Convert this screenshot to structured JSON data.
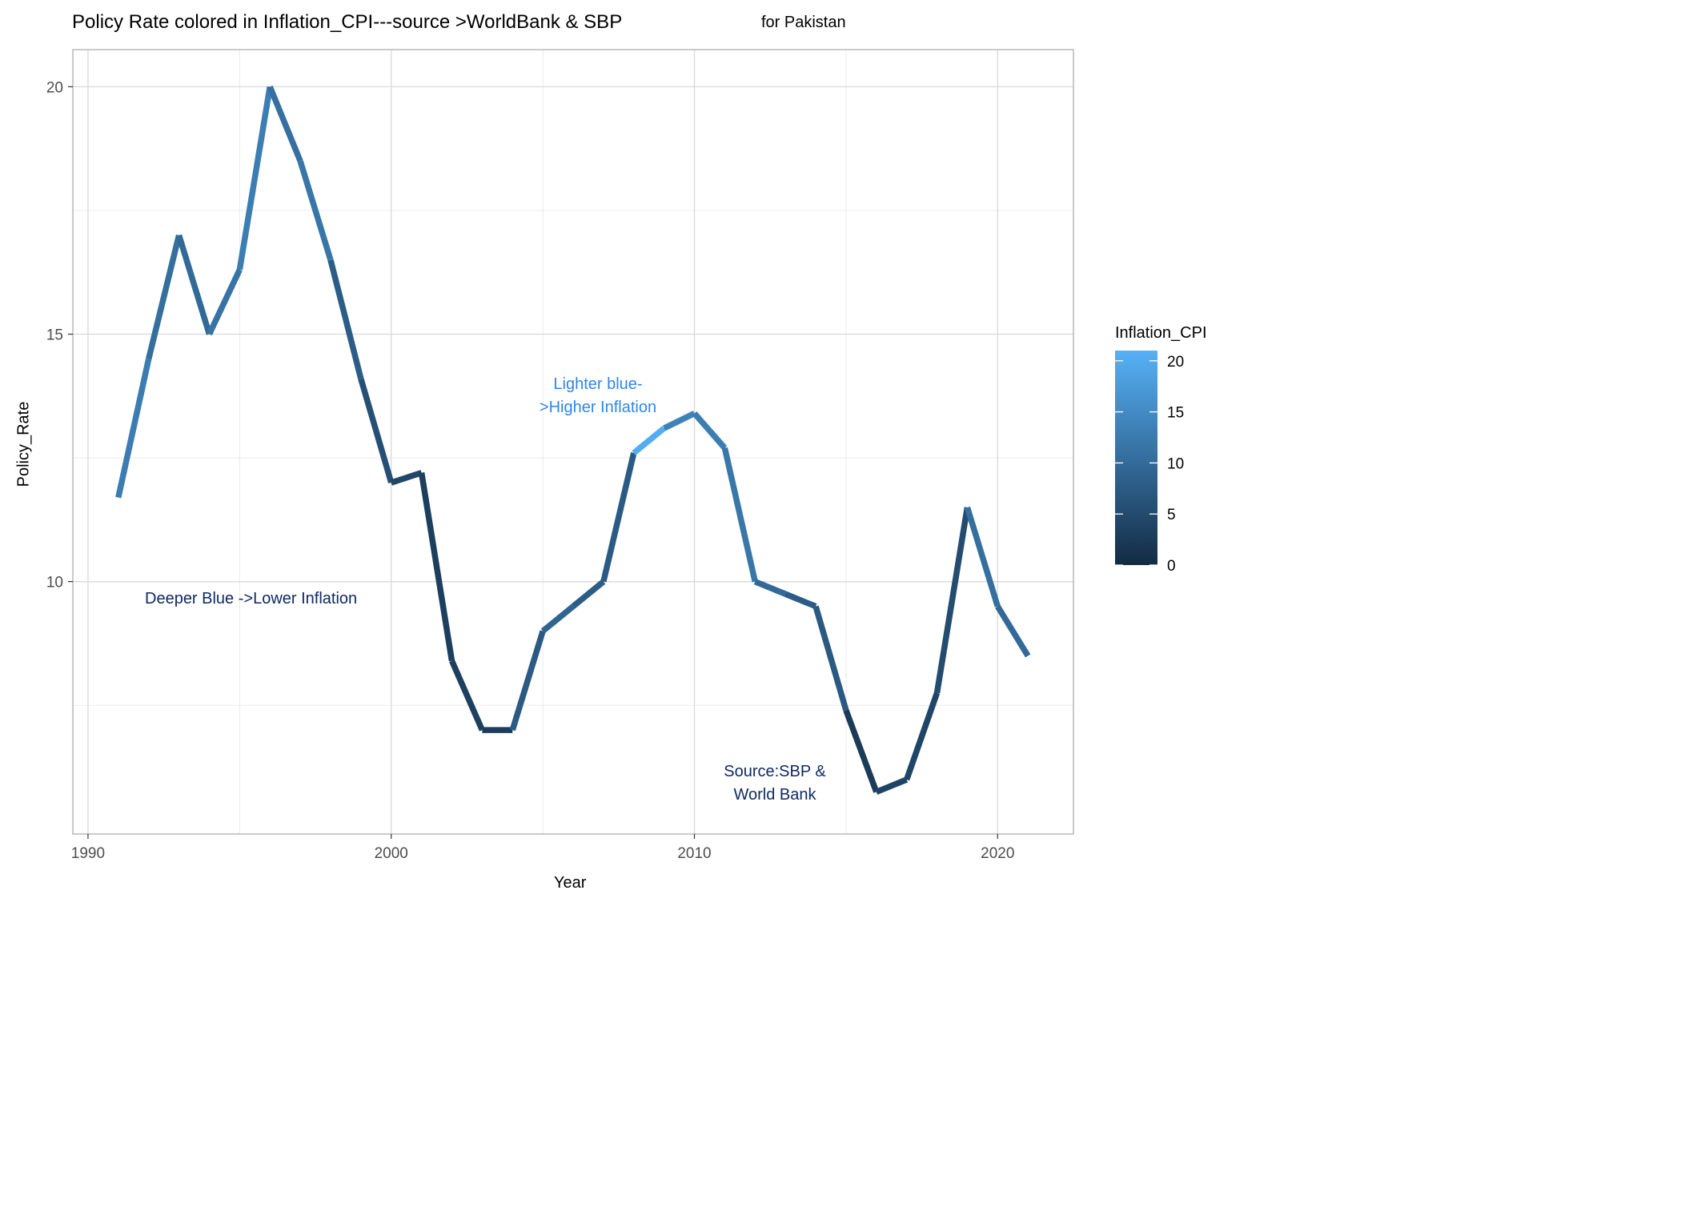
{
  "title": "Policy Rate colored in Inflation_CPI---source >WorldBank & SBP",
  "subtitle": "for Pakistan",
  "xlabel": "Year",
  "ylabel": "Policy_Rate",
  "legend": {
    "title": "Inflation_CPI",
    "ticks": [
      0,
      5,
      10,
      15,
      20
    ],
    "range": [
      0,
      21
    ],
    "color_low": "#132b43",
    "color_high": "#56b1f7"
  },
  "annotations": {
    "light_line1": "Lighter blue-",
    "light_line2": ">Higher Inflation",
    "deep": "Deeper Blue ->Lower Inflation",
    "source_line1": "Source:SBP &",
    "source_line2": "World Bank"
  },
  "chart_data": {
    "type": "line",
    "x_ticks": [
      1990,
      2000,
      2010,
      2020
    ],
    "y_ticks": [
      10,
      15,
      20
    ],
    "xlim": [
      1989.5,
      2022.5
    ],
    "ylim": [
      4.9,
      20.75
    ],
    "grid": true,
    "legend_position": "right",
    "series": [
      {
        "x": [
          1991,
          1992,
          1993,
          1994,
          1995,
          1996,
          1997,
          1998,
          1999,
          2000,
          2001,
          2002,
          2003,
          2004,
          2005,
          2006,
          2007,
          2008,
          2009,
          2010,
          2011,
          2012,
          2013,
          2014,
          2015,
          2016,
          2017,
          2018,
          2019,
          2020,
          2021
        ],
        "policy_rate": [
          11.7,
          14.5,
          17.0,
          15.0,
          16.3,
          20.0,
          18.5,
          16.5,
          14.1,
          12.0,
          12.2,
          8.4,
          7.0,
          7.0,
          9.0,
          9.5,
          10.0,
          12.6,
          13.1,
          13.4,
          12.7,
          10.0,
          9.75,
          9.5,
          7.4,
          5.75,
          6.0,
          7.75,
          11.5,
          9.5,
          8.5
        ],
        "inflation_cpi": [
          12.7,
          10.6,
          9.8,
          11.3,
          13.0,
          10.8,
          11.8,
          7.8,
          5.7,
          4.4,
          3.1,
          3.3,
          2.9,
          7.4,
          9.1,
          7.9,
          7.6,
          20.3,
          13.6,
          12.9,
          11.9,
          9.7,
          7.7,
          7.2,
          2.5,
          3.8,
          4.1,
          5.1,
          10.6,
          9.7,
          9.5
        ]
      }
    ]
  }
}
